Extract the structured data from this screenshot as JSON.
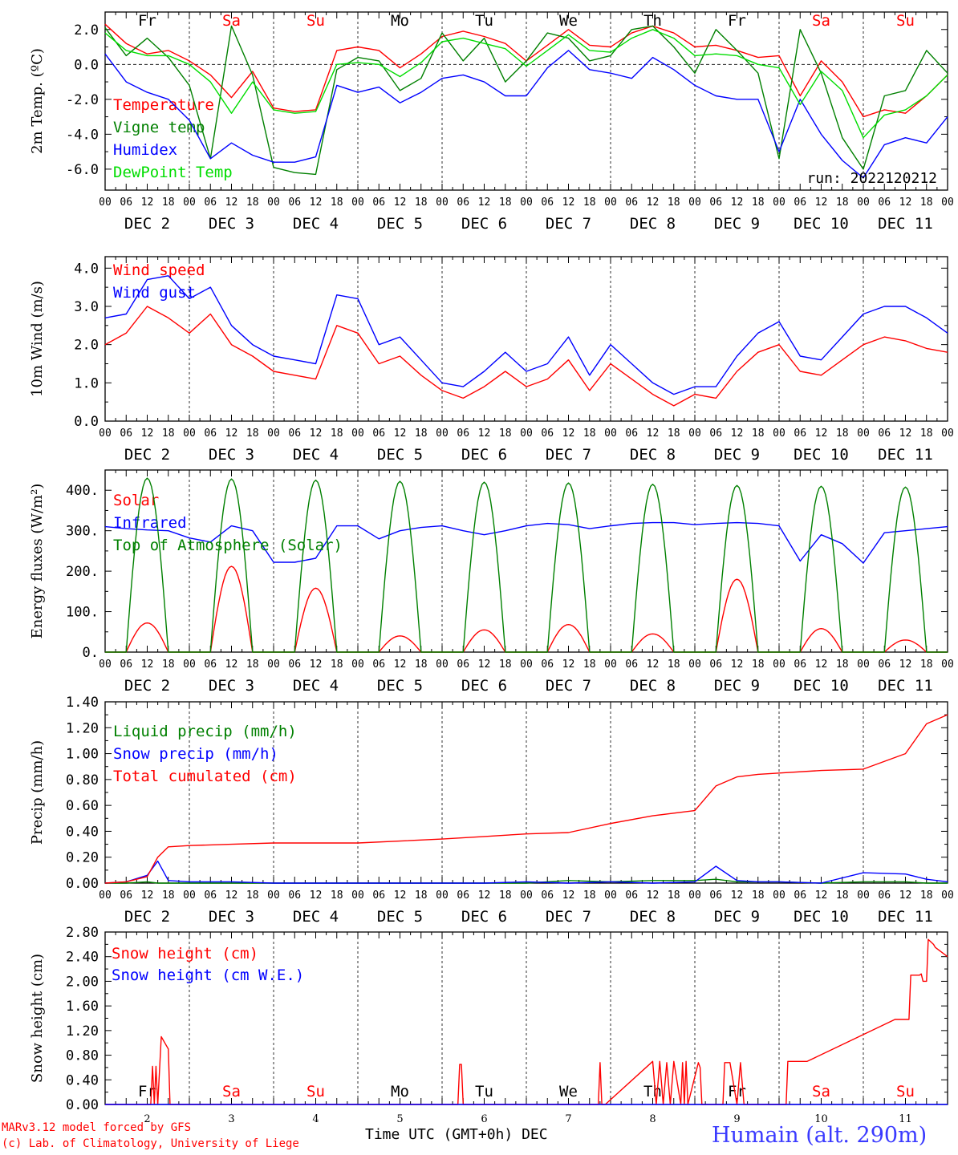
{
  "x_ticks": [
    "00",
    "06",
    "12",
    "18"
  ],
  "x_ticks_end": "00",
  "dates": [
    "DEC  2",
    "DEC  3",
    "DEC  4",
    "DEC  5",
    "DEC  6",
    "DEC  7",
    "DEC  8",
    "DEC  9",
    "DEC 10",
    "DEC 11"
  ],
  "day_names": [
    "Fr",
    "Sa",
    "Su",
    "Mo",
    "Tu",
    "We",
    "Th",
    "Fr",
    "Sa",
    "Su"
  ],
  "weekend_days": [
    false,
    true,
    true,
    false,
    false,
    false,
    false,
    false,
    true,
    true
  ],
  "colors": {
    "red": "#ff0000",
    "green": "#008000",
    "blue": "#0000ff",
    "lightgreen": "#00dd00",
    "weekend": "#ff0000",
    "axis": "#000000"
  },
  "run_label": "run: 2022120212",
  "footer": {
    "credit1": "MARv3.12 model forced by GFS",
    "credit2": "(c) Lab. of Climatology, University of Liege",
    "xlabel": "Time UTC (GMT+0h) DEC",
    "station": "Humain (alt. 290m)"
  },
  "bottom_day_numbers": [
    "2",
    "3",
    "4",
    "5",
    "6",
    "7",
    "8",
    "9",
    "10",
    "11"
  ],
  "chart_data": [
    {
      "type": "line",
      "ylabel": "2m Temp. (ºC)",
      "ylim": [
        -7.2,
        3.0
      ],
      "yticks": [
        -6.0,
        -4.0,
        -2.0,
        0.0,
        2.0
      ],
      "ytick_labels": [
        "-6.0",
        "-4.0",
        "-2.0",
        "0.0",
        "2.0"
      ],
      "zero_line": true,
      "x": [
        0,
        6,
        12,
        18,
        24,
        30,
        36,
        42,
        48,
        54,
        60,
        66,
        72,
        78,
        84,
        90,
        96,
        102,
        108,
        114,
        120,
        126,
        132,
        138,
        144,
        150,
        156,
        162,
        168,
        174,
        180,
        186,
        192,
        198,
        204,
        210,
        216,
        222,
        228,
        234,
        240
      ],
      "series": [
        {
          "name": "Temperature",
          "color": "red",
          "values": [
            2.3,
            1.2,
            0.6,
            0.8,
            0.2,
            -0.6,
            -1.9,
            -0.4,
            -2.5,
            -2.7,
            -2.6,
            0.8,
            1.0,
            0.8,
            -0.2,
            0.6,
            1.6,
            1.9,
            1.6,
            1.2,
            0.2,
            1.1,
            2.0,
            1.1,
            1.0,
            1.8,
            2.2,
            1.8,
            1.0,
            1.1,
            0.8,
            0.4,
            0.5,
            -1.8,
            0.2,
            -1.0,
            -3.0,
            -2.6,
            -2.8,
            -1.8,
            -0.6
          ]
        },
        {
          "name": "Vigne temp",
          "color": "green",
          "values": [
            2.1,
            0.5,
            1.5,
            0.4,
            -1.2,
            -5.4,
            2.2,
            -0.6,
            -5.9,
            -6.2,
            -6.3,
            -0.3,
            0.4,
            0.2,
            -1.5,
            -0.8,
            1.8,
            0.2,
            1.5,
            -1.0,
            0.2,
            1.8,
            1.5,
            0.2,
            0.5,
            2.0,
            2.2,
            1.0,
            -0.5,
            2.0,
            0.8,
            -0.5,
            -5.4,
            2.0,
            -0.5,
            -4.2,
            -6.0,
            -1.8,
            -1.5,
            0.8,
            -0.5
          ]
        },
        {
          "name": "Humidex",
          "color": "blue",
          "values": [
            0.6,
            -1.0,
            -1.6,
            -2.0,
            -3.2,
            -5.4,
            -4.5,
            -5.2,
            -5.6,
            -5.6,
            -5.3,
            -1.2,
            -1.6,
            -1.3,
            -2.2,
            -1.6,
            -0.8,
            -0.6,
            -1.0,
            -1.8,
            -1.8,
            -0.2,
            0.8,
            -0.3,
            -0.5,
            -0.8,
            0.4,
            -0.3,
            -1.2,
            -1.8,
            -2.0,
            -2.0,
            -5.0,
            -2.0,
            -4.0,
            -5.5,
            -6.5,
            -4.6,
            -4.2,
            -4.5,
            -3.0
          ]
        },
        {
          "name": "DewPoint Temp",
          "color": "lightgreen",
          "values": [
            1.8,
            0.8,
            0.5,
            0.5,
            0.0,
            -1.0,
            -2.8,
            -1.0,
            -2.6,
            -2.8,
            -2.7,
            0.0,
            0.1,
            0.0,
            -0.7,
            0.1,
            1.3,
            1.5,
            1.2,
            0.9,
            -0.1,
            0.8,
            1.7,
            0.8,
            0.7,
            1.5,
            2.0,
            1.5,
            0.5,
            0.6,
            0.5,
            0.0,
            -0.2,
            -2.3,
            -0.4,
            -1.5,
            -4.2,
            -2.9,
            -2.6,
            -1.8,
            -0.6
          ]
        }
      ]
    },
    {
      "type": "line",
      "ylabel": "10m Wind (m/s)",
      "ylim": [
        0,
        4.3
      ],
      "yticks": [
        0.0,
        1.0,
        2.0,
        3.0,
        4.0
      ],
      "ytick_labels": [
        "0.0",
        "1.0",
        "2.0",
        "3.0",
        "4.0"
      ],
      "x": [
        0,
        6,
        12,
        18,
        24,
        30,
        36,
        42,
        48,
        54,
        60,
        66,
        72,
        78,
        84,
        90,
        96,
        102,
        108,
        114,
        120,
        126,
        132,
        138,
        144,
        150,
        156,
        162,
        168,
        174,
        180,
        186,
        192,
        198,
        204,
        210,
        216,
        222,
        228,
        234,
        240
      ],
      "series": [
        {
          "name": "Wind speed",
          "color": "red",
          "values": [
            2.0,
            2.3,
            3.0,
            2.7,
            2.3,
            2.8,
            2.0,
            1.7,
            1.3,
            1.2,
            1.1,
            2.5,
            2.3,
            1.5,
            1.7,
            1.2,
            0.8,
            0.6,
            0.9,
            1.3,
            0.9,
            1.1,
            1.6,
            0.8,
            1.5,
            1.1,
            0.7,
            0.4,
            0.7,
            0.6,
            1.3,
            1.8,
            2.0,
            1.3,
            1.2,
            1.6,
            2.0,
            2.2,
            2.1,
            1.9,
            1.8
          ]
        },
        {
          "name": "Wind gust",
          "color": "blue",
          "values": [
            2.7,
            2.8,
            3.7,
            3.8,
            3.2,
            3.5,
            2.5,
            2.0,
            1.7,
            1.6,
            1.5,
            3.3,
            3.2,
            2.0,
            2.2,
            1.6,
            1.0,
            0.9,
            1.3,
            1.8,
            1.3,
            1.5,
            2.2,
            1.2,
            2.0,
            1.5,
            1.0,
            0.7,
            0.9,
            0.9,
            1.7,
            2.3,
            2.6,
            1.7,
            1.6,
            2.2,
            2.8,
            3.0,
            3.0,
            2.7,
            2.3
          ]
        }
      ]
    },
    {
      "type": "line",
      "ylabel": "Energy fluxes (W/m²)",
      "ylim": [
        0,
        450
      ],
      "yticks": [
        0,
        100,
        200,
        300,
        400
      ],
      "ytick_labels": [
        "0.",
        "100.",
        "200.",
        "300.",
        "400."
      ],
      "series": [
        {
          "name": "Solar",
          "color": "red",
          "peaks": [
            72,
            212,
            158,
            40,
            55,
            68,
            45,
            180,
            58,
            30
          ]
        },
        {
          "name": "Infrared",
          "color": "blue",
          "x": [
            0,
            6,
            12,
            18,
            24,
            30,
            36,
            42,
            48,
            54,
            60,
            66,
            72,
            78,
            84,
            90,
            96,
            102,
            108,
            114,
            120,
            126,
            132,
            138,
            144,
            150,
            156,
            162,
            168,
            174,
            180,
            186,
            192,
            198,
            204,
            210,
            216,
            222,
            228,
            234,
            240
          ],
          "values": [
            310,
            305,
            302,
            300,
            282,
            272,
            312,
            300,
            222,
            222,
            232,
            312,
            312,
            280,
            300,
            308,
            312,
            300,
            290,
            300,
            312,
            318,
            315,
            305,
            312,
            318,
            320,
            320,
            315,
            318,
            320,
            318,
            312,
            225,
            290,
            268,
            220,
            295,
            300,
            305,
            310
          ]
        },
        {
          "name": "Top of Atmosphere (Solar)",
          "color": "green",
          "peaks": [
            430,
            428,
            425,
            422,
            420,
            418,
            415,
            412,
            410,
            408
          ]
        }
      ]
    },
    {
      "type": "line",
      "ylabel": "Precip (mm/h)",
      "ylim": [
        0,
        1.4
      ],
      "yticks": [
        0.0,
        0.2,
        0.4,
        0.6,
        0.8,
        1.0,
        1.2,
        1.4
      ],
      "ytick_labels": [
        "0.00",
        "0.20",
        "0.40",
        "0.60",
        "0.80",
        "1.00",
        "1.20",
        "1.40"
      ],
      "x": [
        0,
        6,
        12,
        15,
        18,
        24,
        36,
        48,
        72,
        96,
        108,
        120,
        132,
        144,
        156,
        168,
        174,
        180,
        186,
        192,
        204,
        216,
        228,
        234,
        240
      ],
      "series": [
        {
          "name": "Liquid precip (mm/h)",
          "color": "green",
          "values": [
            0,
            0,
            0.01,
            0,
            0,
            0,
            0,
            0,
            0,
            0,
            0,
            0,
            0.02,
            0.01,
            0.02,
            0.02,
            0.03,
            0.01,
            0.01,
            0.01,
            0,
            0.01,
            0.01,
            0,
            0
          ]
        },
        {
          "name": "Snow precip (mm/h)",
          "color": "blue",
          "values": [
            0,
            0.01,
            0.06,
            0.17,
            0.02,
            0.01,
            0.01,
            0,
            0,
            0,
            0,
            0.01,
            0,
            0.01,
            0,
            0.01,
            0.13,
            0.02,
            0.01,
            0.01,
            0,
            0.08,
            0.07,
            0.03,
            0.01
          ]
        },
        {
          "name": "Total cumulated (cm)",
          "color": "red",
          "values": [
            0,
            0.01,
            0.05,
            0.2,
            0.28,
            0.29,
            0.3,
            0.31,
            0.31,
            0.34,
            0.36,
            0.38,
            0.39,
            0.46,
            0.52,
            0.56,
            0.75,
            0.82,
            0.84,
            0.85,
            0.87,
            0.88,
            1.0,
            1.23,
            1.3
          ]
        }
      ]
    },
    {
      "type": "line",
      "ylabel": "Snow height (cm)",
      "ylim": [
        0,
        2.8
      ],
      "yticks": [
        0.0,
        0.4,
        0.8,
        1.2,
        1.6,
        2.0,
        2.4,
        2.8
      ],
      "ytick_labels": [
        "0.00",
        "0.40",
        "0.80",
        "1.20",
        "1.60",
        "2.00",
        "2.40",
        "2.80"
      ],
      "series": [
        {
          "name": "Snow height (cm)",
          "color": "red",
          "x": [
            0,
            13,
            13.5,
            14,
            14.5,
            15,
            16,
            17,
            18,
            18.5,
            100.5,
            101,
            101.5,
            102,
            102.5,
            140.5,
            141,
            141.5,
            142,
            142.5,
            156,
            157,
            158,
            159,
            160,
            161,
            162,
            164,
            164.5,
            165,
            165.5,
            166,
            169,
            169.5,
            170,
            170.5,
            176,
            176.5,
            177,
            177.5,
            178,
            180,
            181,
            182,
            183,
            184,
            194,
            194.5,
            200,
            225,
            225.5,
            229,
            229.5,
            232,
            232.5,
            233,
            234,
            234.5,
            236,
            236.5,
            240
          ],
          "values": [
            0,
            0,
            0.62,
            0,
            0.62,
            0,
            1.1,
            1.0,
            0.9,
            0,
            0,
            0.65,
            0.65,
            0,
            0,
            0,
            0.68,
            0,
            0,
            0,
            0.7,
            0,
            0.7,
            0,
            0.68,
            0,
            0.7,
            0,
            0.68,
            0,
            0.7,
            0,
            0.68,
            0.6,
            0,
            0,
            0,
            0.68,
            0.68,
            0.68,
            0.68,
            0,
            0.68,
            0,
            0,
            0,
            0,
            0.7,
            0.7,
            1.38,
            1.38,
            1.38,
            2.1,
            2.1,
            2.12,
            2.0,
            2.0,
            2.68,
            2.6,
            2.55,
            2.4
          ]
        },
        {
          "name": "Snow height (cm W.E.)",
          "color": "blue",
          "x": [
            0,
            240
          ],
          "values": [
            0,
            0
          ]
        }
      ]
    }
  ]
}
